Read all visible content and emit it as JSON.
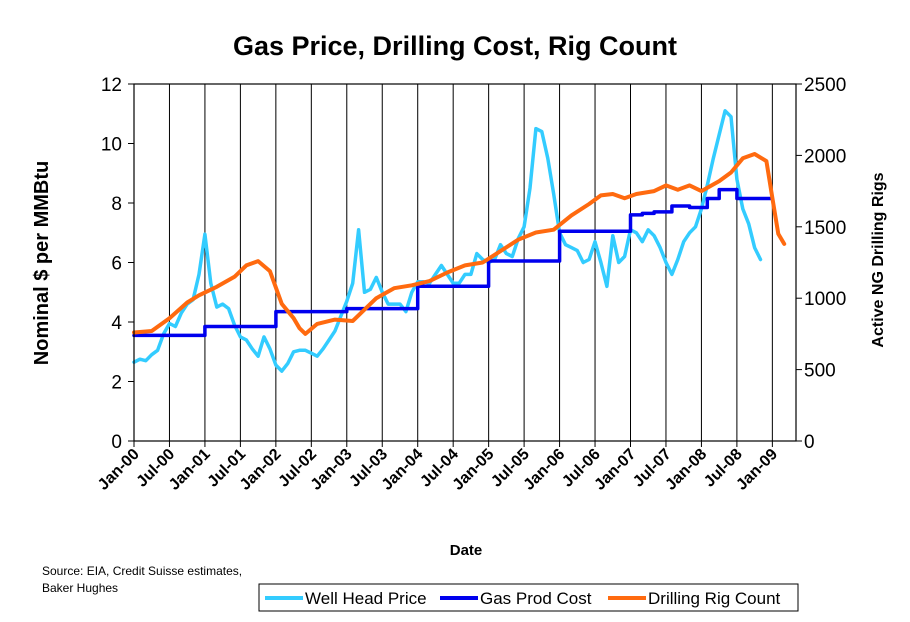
{
  "chart_data": {
    "type": "line",
    "title": "Gas Price, Drilling Cost, Rig Count",
    "xlabel": "Date",
    "ylabel": "Nominal $ per MMBtu",
    "y2label": "Active NG Drilling Rigs",
    "ylim": [
      0,
      12
    ],
    "y2lim": [
      0,
      2500
    ],
    "yticks": [
      "0",
      "2",
      "4",
      "6",
      "8",
      "10",
      "12"
    ],
    "y2ticks": [
      "0",
      "500",
      "1000",
      "1500",
      "2000",
      "2500"
    ],
    "xticks": [
      "Jan-00",
      "Jul-00",
      "Jan-01",
      "Jul-01",
      "Jan-02",
      "Jul-02",
      "Jan-03",
      "Jul-03",
      "Jan-04",
      "Jul-04",
      "Jan-05",
      "Jul-05",
      "Jan-06",
      "Jul-06",
      "Jan-07",
      "Jul-07",
      "Jan-08",
      "Jul-08",
      "Jan-09"
    ],
    "x_range_months": [
      0,
      112
    ],
    "grid": "vertical",
    "legend_position": "bottom-right",
    "source_note": [
      "Source: EIA, Credit Suisse estimates,",
      "Baker Hughes"
    ],
    "series": [
      {
        "name": "Well Head Price",
        "axis": "left",
        "color": "#33ccff",
        "points": [
          [
            0,
            2.65
          ],
          [
            1,
            2.75
          ],
          [
            2,
            2.7
          ],
          [
            3,
            2.9
          ],
          [
            4,
            3.05
          ],
          [
            5,
            3.6
          ],
          [
            6,
            3.95
          ],
          [
            7,
            3.85
          ],
          [
            8,
            4.3
          ],
          [
            9,
            4.6
          ],
          [
            10,
            4.75
          ],
          [
            11,
            5.6
          ],
          [
            12,
            6.95
          ],
          [
            13,
            5.3
          ],
          [
            14,
            4.5
          ],
          [
            15,
            4.6
          ],
          [
            16,
            4.45
          ],
          [
            17,
            3.9
          ],
          [
            18,
            3.5
          ],
          [
            19,
            3.4
          ],
          [
            20,
            3.1
          ],
          [
            21,
            2.85
          ],
          [
            22,
            3.5
          ],
          [
            23,
            3.1
          ],
          [
            24,
            2.55
          ],
          [
            25,
            2.35
          ],
          [
            26,
            2.6
          ],
          [
            27,
            3.0
          ],
          [
            28,
            3.05
          ],
          [
            29,
            3.05
          ],
          [
            30,
            2.95
          ],
          [
            31,
            2.85
          ],
          [
            32,
            3.1
          ],
          [
            33,
            3.4
          ],
          [
            34,
            3.7
          ],
          [
            35,
            4.2
          ],
          [
            36,
            4.7
          ],
          [
            37,
            5.3
          ],
          [
            38,
            7.1
          ],
          [
            39,
            5.0
          ],
          [
            40,
            5.1
          ],
          [
            41,
            5.5
          ],
          [
            42,
            5.0
          ],
          [
            43,
            4.6
          ],
          [
            44,
            4.6
          ],
          [
            45,
            4.6
          ],
          [
            46,
            4.35
          ],
          [
            47,
            5.0
          ],
          [
            48,
            5.35
          ],
          [
            49,
            5.35
          ],
          [
            50,
            5.3
          ],
          [
            51,
            5.6
          ],
          [
            52,
            5.9
          ],
          [
            53,
            5.6
          ],
          [
            54,
            5.3
          ],
          [
            55,
            5.3
          ],
          [
            56,
            5.6
          ],
          [
            57,
            5.6
          ],
          [
            58,
            6.3
          ],
          [
            59,
            6.1
          ],
          [
            60,
            6.0
          ],
          [
            61,
            6.1
          ],
          [
            62,
            6.6
          ],
          [
            63,
            6.3
          ],
          [
            64,
            6.2
          ],
          [
            65,
            6.8
          ],
          [
            66,
            7.2
          ],
          [
            67,
            8.5
          ],
          [
            68,
            10.5
          ],
          [
            69,
            10.4
          ],
          [
            70,
            9.5
          ],
          [
            71,
            8.3
          ],
          [
            72,
            7.0
          ],
          [
            73,
            6.6
          ],
          [
            74,
            6.5
          ],
          [
            75,
            6.4
          ],
          [
            76,
            6.0
          ],
          [
            77,
            6.1
          ],
          [
            78,
            6.7
          ],
          [
            79,
            6.0
          ],
          [
            80,
            5.2
          ],
          [
            81,
            6.9
          ],
          [
            82,
            6.0
          ],
          [
            83,
            6.2
          ],
          [
            84,
            7.1
          ],
          [
            85,
            7.0
          ],
          [
            86,
            6.7
          ],
          [
            87,
            7.1
          ],
          [
            88,
            6.9
          ],
          [
            89,
            6.5
          ],
          [
            90,
            6.0
          ],
          [
            91,
            5.6
          ],
          [
            92,
            6.1
          ],
          [
            93,
            6.7
          ],
          [
            94,
            7.0
          ],
          [
            95,
            7.2
          ],
          [
            96,
            7.8
          ],
          [
            97,
            8.6
          ],
          [
            98,
            9.5
          ],
          [
            99,
            10.3
          ],
          [
            100,
            11.1
          ],
          [
            101,
            10.9
          ],
          [
            102,
            8.8
          ],
          [
            103,
            7.8
          ],
          [
            104,
            7.3
          ],
          [
            105,
            6.5
          ],
          [
            106,
            6.1
          ]
        ]
      },
      {
        "name": "Gas Prod Cost",
        "axis": "left",
        "color": "#0000ee",
        "points": [
          [
            0,
            3.55
          ],
          [
            12,
            3.55
          ],
          [
            12,
            3.85
          ],
          [
            24,
            3.85
          ],
          [
            24,
            4.35
          ],
          [
            36,
            4.35
          ],
          [
            36,
            4.45
          ],
          [
            48,
            4.45
          ],
          [
            48,
            5.2
          ],
          [
            60,
            5.2
          ],
          [
            60,
            6.05
          ],
          [
            62,
            6.05
          ],
          [
            62,
            6.05
          ],
          [
            72,
            6.05
          ],
          [
            72,
            7.05
          ],
          [
            84,
            7.05
          ],
          [
            84,
            7.6
          ],
          [
            86,
            7.6
          ],
          [
            86,
            7.65
          ],
          [
            88,
            7.65
          ],
          [
            88,
            7.7
          ],
          [
            91,
            7.7
          ],
          [
            91,
            7.9
          ],
          [
            94,
            7.9
          ],
          [
            94,
            7.85
          ],
          [
            97,
            7.85
          ],
          [
            97,
            8.15
          ],
          [
            99,
            8.15
          ],
          [
            99,
            8.45
          ],
          [
            102,
            8.45
          ],
          [
            102,
            8.15
          ],
          [
            108,
            8.15
          ]
        ]
      },
      {
        "name": "Drilling Rig Count",
        "axis": "right",
        "color": "#ff6a0f",
        "points": [
          [
            0,
            760
          ],
          [
            3,
            770
          ],
          [
            6,
            860
          ],
          [
            9,
            970
          ],
          [
            11,
            1020
          ],
          [
            14,
            1080
          ],
          [
            17,
            1150
          ],
          [
            19,
            1230
          ],
          [
            21,
            1260
          ],
          [
            23,
            1190
          ],
          [
            25,
            960
          ],
          [
            27,
            860
          ],
          [
            28,
            790
          ],
          [
            29,
            750
          ],
          [
            31,
            820
          ],
          [
            34,
            850
          ],
          [
            37,
            840
          ],
          [
            39,
            920
          ],
          [
            41,
            1000
          ],
          [
            44,
            1070
          ],
          [
            47,
            1090
          ],
          [
            50,
            1120
          ],
          [
            53,
            1180
          ],
          [
            56,
            1230
          ],
          [
            59,
            1250
          ],
          [
            62,
            1330
          ],
          [
            65,
            1410
          ],
          [
            68,
            1460
          ],
          [
            71,
            1480
          ],
          [
            74,
            1580
          ],
          [
            77,
            1660
          ],
          [
            79,
            1720
          ],
          [
            81,
            1730
          ],
          [
            83,
            1700
          ],
          [
            85,
            1730
          ],
          [
            88,
            1750
          ],
          [
            90,
            1790
          ],
          [
            92,
            1760
          ],
          [
            94,
            1790
          ],
          [
            96,
            1750
          ],
          [
            99,
            1820
          ],
          [
            101,
            1880
          ],
          [
            103,
            1980
          ],
          [
            105,
            2010
          ],
          [
            107,
            1960
          ],
          [
            108,
            1700
          ],
          [
            109,
            1450
          ],
          [
            110,
            1380
          ]
        ]
      }
    ]
  }
}
